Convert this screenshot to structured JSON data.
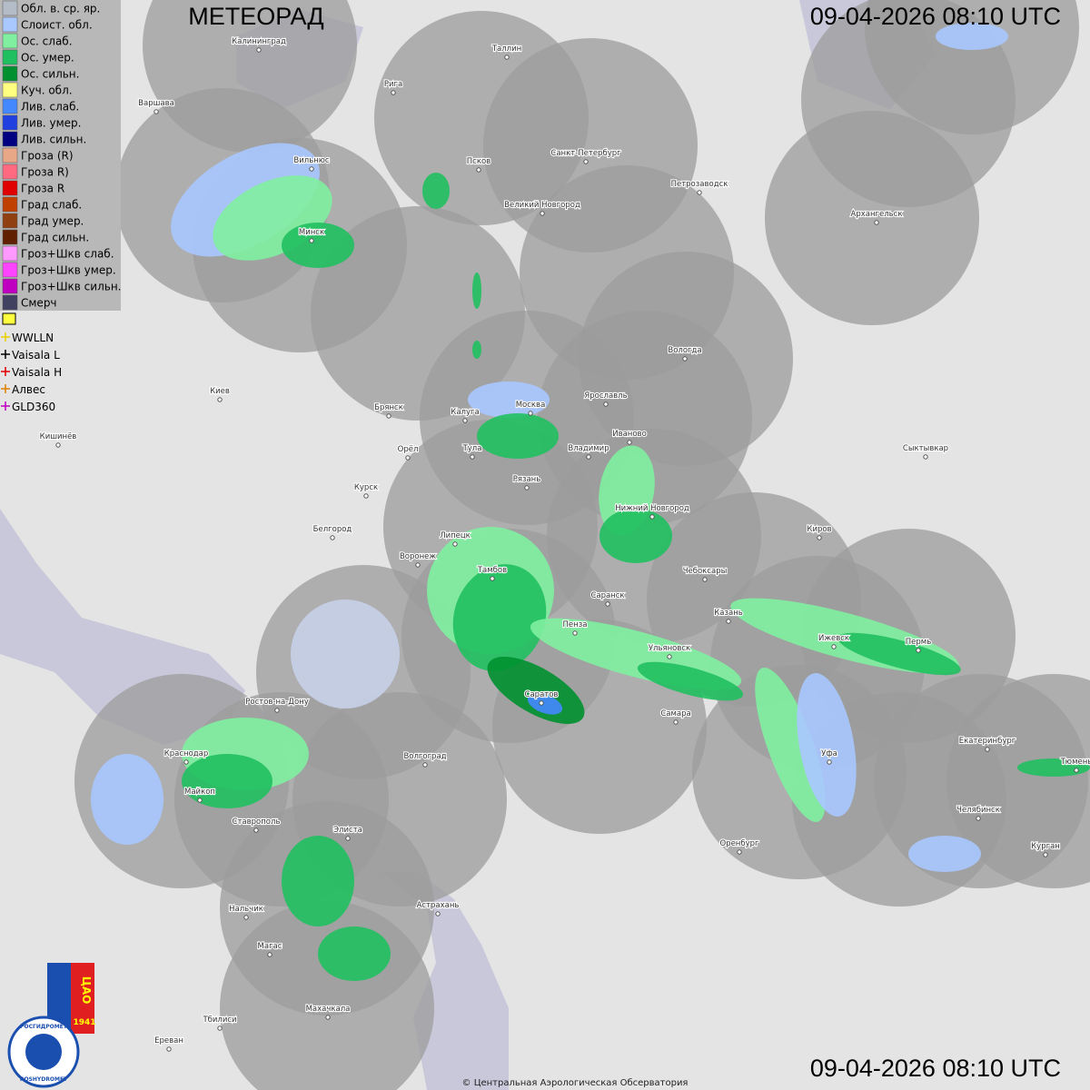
{
  "header": {
    "title": "МЕТЕОРАД",
    "timestamp_top": "09-04-2026  08:10 UTC",
    "timestamp_bottom": "09-04-2026  08:10 UTC"
  },
  "legend": {
    "items": [
      {
        "label": "Обл. в. ср. яр.",
        "color": "#b4bcc8"
      },
      {
        "label": "Слоист. обл.",
        "color": "#a8c8ff"
      },
      {
        "label": "Ос. слаб.",
        "color": "#80f0a0"
      },
      {
        "label": "Ос. умер.",
        "color": "#20c060"
      },
      {
        "label": "Ос. сильн.",
        "color": "#009030"
      },
      {
        "label": "Куч. обл.",
        "color": "#ffff80"
      },
      {
        "label": "Лив. слаб.",
        "color": "#4488ff"
      },
      {
        "label": "Лив. умер.",
        "color": "#2040e0"
      },
      {
        "label": "Лив. сильн.",
        "color": "#000080"
      },
      {
        "label": "Гроза (R)",
        "color": "#e8a888"
      },
      {
        "label": "Гроза R)",
        "color": "#ff6a80"
      },
      {
        "label": "Гроза R",
        "color": "#e00000"
      },
      {
        "label": "Град слаб.",
        "color": "#c04000"
      },
      {
        "label": "Град умер.",
        "color": "#904010"
      },
      {
        "label": "Град сильн.",
        "color": "#602000"
      },
      {
        "label": "Гроз+Шкв слаб.",
        "color": "#ff99ff"
      },
      {
        "label": "Гроз+Шкв умер.",
        "color": "#ff44ff"
      },
      {
        "label": "Гроз+Шкв сильн.",
        "color": "#c000c0"
      },
      {
        "label": "Смерч",
        "color": "#404060"
      }
    ],
    "lightning": [
      {
        "label": "WWLLN",
        "color": "#e8d000"
      },
      {
        "label": "Vaisala L",
        "color": "#000000"
      },
      {
        "label": "Vaisala H",
        "color": "#e00000"
      },
      {
        "label": "Алвес",
        "color": "#e08000"
      },
      {
        "label": "GLD360",
        "color": "#c000c0"
      }
    ]
  },
  "cities": [
    "Калининград",
    "Таллин",
    "Рига",
    "Варшава",
    "Вильнюс",
    "Псков",
    "Санкт-Петербург",
    "Петрозаводск",
    "Архангельск",
    "Великий Новгород",
    "Минск",
    "Вологда",
    "Киев",
    "Брянск",
    "Калуга",
    "Москва",
    "Ярославль",
    "Кишинёв",
    "Иваново",
    "Тула",
    "Владимир",
    "Орёл",
    "Сыктывкар",
    "Рязань",
    "Курск",
    "Нижний Новгород",
    "Белгород",
    "Липецк",
    "Киров",
    "Воронеж",
    "Тамбов",
    "Чебоксары",
    "Саранск",
    "Казань",
    "Пенза",
    "Ижевск",
    "Пермь",
    "Ульяновск",
    "Ростов-на-Дону",
    "Саратов",
    "Самара",
    "Волгоград",
    "Екатеринбург",
    "Краснодар",
    "Уфа",
    "Тюмень",
    "Майкоп",
    "Челябинск",
    "Ставрополь",
    "Элиста",
    "Оренбург",
    "Курган",
    "Нальчик",
    "Астрахань",
    "Магас",
    "Тбилиси",
    "Махачкала",
    "Ереван"
  ],
  "logo": {
    "rosgidromet": "РОСГИДРОМЕТ",
    "roshydromet": "ROSHYDROMET",
    "cao": "ЦАО",
    "year": "1941"
  },
  "footer": {
    "copyright": "© Центральная Аэрологическая Обсерватория"
  }
}
